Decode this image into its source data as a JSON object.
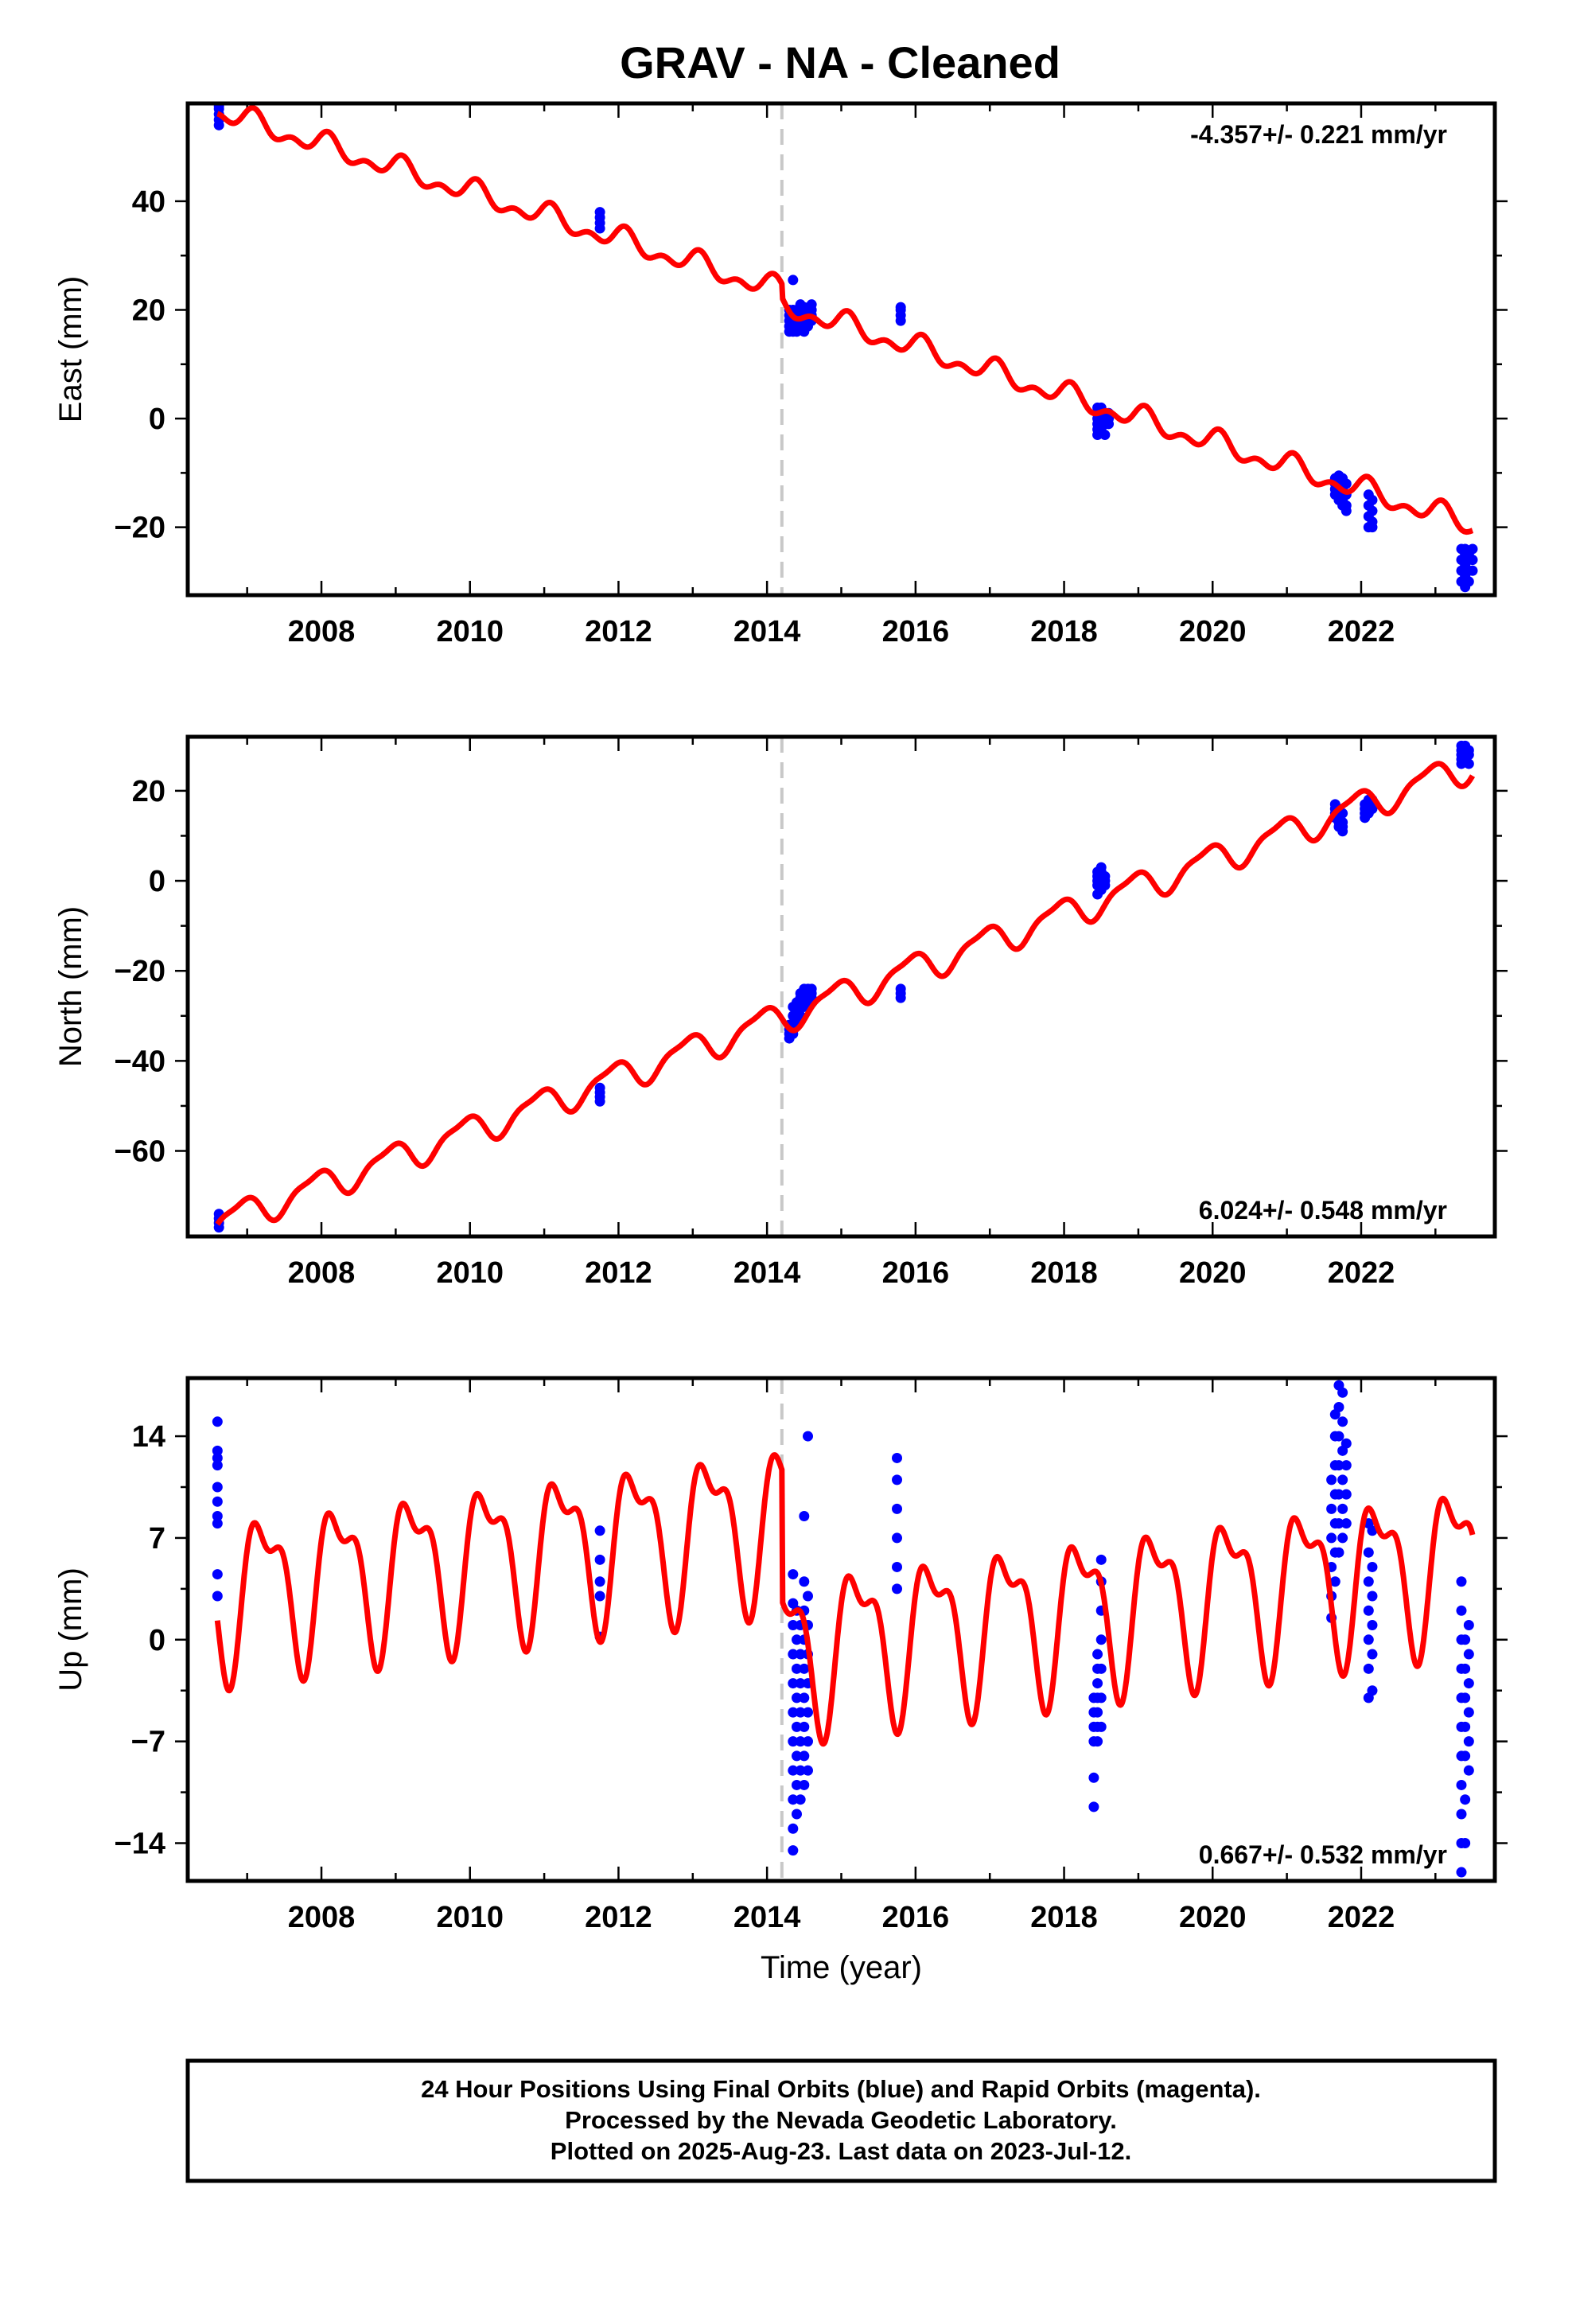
{
  "title": "GRAV  - NA - Cleaned",
  "colors": {
    "final_orbits": "#0000ff",
    "model_fit": "#ff0000",
    "break_line": "#c8c8c8",
    "frame": "#000000"
  },
  "footer": {
    "line1": "24 Hour Positions Using Final Orbits (blue) and Rapid Orbits (magenta).",
    "line2": "Processed by the Nevada Geodetic Laboratory.",
    "line3": "Plotted on 2025-Aug-23. Last data on 2023-Jul-12."
  },
  "chart_data": [
    {
      "type": "scatter",
      "panel": "east",
      "xlabel": "",
      "ylabel": "East (mm)",
      "xlim": [
        2006.2,
        2023.8
      ],
      "ylim": [
        -32.5,
        58
      ],
      "x_ticks": [
        2008,
        2010,
        2012,
        2014,
        2016,
        2018,
        2020,
        2022
      ],
      "y_ticks": [
        -20,
        0,
        20,
        40
      ],
      "rate_text": "-4.357+/- 0.221 mm/yr",
      "rate_position": "top-right",
      "break_epoch": 2014.2,
      "model": {
        "slope": -4.357,
        "ref_epoch": 2006.6,
        "intercept": 56.5,
        "offset_at_break": -2.5,
        "annual_amplitude": 1.6,
        "annual_phase": 1.1,
        "semiannual_amplitude": 1.2,
        "semiannual_phase": 0.4,
        "x_start": 2006.6,
        "x_end": 2023.5
      },
      "observations": [
        {
          "x": 2006.62,
          "y": [
            54,
            55,
            56,
            57,
            57.5
          ]
        },
        {
          "x": 2011.75,
          "y": [
            35,
            36,
            37,
            38
          ]
        },
        {
          "x": 2014.3,
          "y": [
            16,
            17,
            18,
            19,
            20
          ]
        },
        {
          "x": 2014.35,
          "y": [
            16,
            18,
            20,
            25.5
          ]
        },
        {
          "x": 2014.4,
          "y": [
            16,
            17,
            19,
            20
          ]
        },
        {
          "x": 2014.45,
          "y": [
            17,
            18,
            19,
            20,
            21
          ]
        },
        {
          "x": 2014.5,
          "y": [
            16,
            17.5,
            19,
            20.5
          ]
        },
        {
          "x": 2014.55,
          "y": [
            17,
            18,
            19,
            20
          ]
        },
        {
          "x": 2014.6,
          "y": [
            18,
            19,
            20,
            21
          ]
        },
        {
          "x": 2015.8,
          "y": [
            18,
            19,
            20,
            20.5
          ]
        },
        {
          "x": 2018.45,
          "y": [
            -3,
            -2,
            -1,
            0,
            1,
            2
          ]
        },
        {
          "x": 2018.5,
          "y": [
            -2,
            -1,
            0,
            1,
            2
          ]
        },
        {
          "x": 2018.55,
          "y": [
            -3,
            -1,
            0,
            1
          ]
        },
        {
          "x": 2018.6,
          "y": [
            -1,
            0,
            1
          ]
        },
        {
          "x": 2021.65,
          "y": [
            -11,
            -12,
            -13,
            -14
          ]
        },
        {
          "x": 2021.7,
          "y": [
            -10.5,
            -12,
            -13,
            -14,
            -15
          ]
        },
        {
          "x": 2021.75,
          "y": [
            -11,
            -13,
            -15,
            -16
          ]
        },
        {
          "x": 2021.8,
          "y": [
            -12,
            -14,
            -16,
            -17
          ]
        },
        {
          "x": 2022.1,
          "y": [
            -14,
            -16,
            -18,
            -20
          ]
        },
        {
          "x": 2022.15,
          "y": [
            -15,
            -17,
            -19,
            -20
          ]
        },
        {
          "x": 2023.35,
          "y": [
            -24,
            -26,
            -28,
            -30
          ]
        },
        {
          "x": 2023.4,
          "y": [
            -24,
            -25,
            -27,
            -29,
            -31
          ]
        },
        {
          "x": 2023.45,
          "y": [
            -25,
            -26,
            -28,
            -30
          ]
        },
        {
          "x": 2023.5,
          "y": [
            -24,
            -26,
            -28
          ]
        }
      ]
    },
    {
      "type": "scatter",
      "panel": "north",
      "xlabel": "",
      "ylabel": "North (mm)",
      "xlim": [
        2006.2,
        2023.8
      ],
      "ylim": [
        -79,
        32
      ],
      "x_ticks": [
        2008,
        2010,
        2012,
        2014,
        2016,
        2018,
        2020,
        2022
      ],
      "y_ticks": [
        -60,
        -40,
        -20,
        0,
        20
      ],
      "rate_text": "6.024+/- 0.548 mm/yr",
      "rate_position": "bottom-right",
      "break_epoch": 2014.2,
      "model": {
        "slope": 6.024,
        "ref_epoch": 2006.6,
        "intercept": -76,
        "offset_at_break": 0,
        "annual_amplitude": 3.2,
        "annual_phase": 2.1,
        "semiannual_amplitude": 1.0,
        "semiannual_phase": 0.3,
        "x_start": 2006.6,
        "x_end": 2023.5
      },
      "observations": [
        {
          "x": 2006.62,
          "y": [
            -74,
            -75,
            -76,
            -77
          ]
        },
        {
          "x": 2011.75,
          "y": [
            -46,
            -47,
            -48,
            -49
          ]
        },
        {
          "x": 2014.3,
          "y": [
            -35,
            -34,
            -33,
            -32
          ]
        },
        {
          "x": 2014.35,
          "y": [
            -34,
            -32,
            -30,
            -28
          ]
        },
        {
          "x": 2014.4,
          "y": [
            -32,
            -30,
            -28,
            -27
          ]
        },
        {
          "x": 2014.45,
          "y": [
            -30,
            -28,
            -26,
            -25
          ]
        },
        {
          "x": 2014.5,
          "y": [
            -28,
            -26,
            -25,
            -24
          ]
        },
        {
          "x": 2014.55,
          "y": [
            -27,
            -25,
            -24
          ]
        },
        {
          "x": 2014.6,
          "y": [
            -26,
            -25,
            -24
          ]
        },
        {
          "x": 2015.8,
          "y": [
            -26,
            -25,
            -24
          ]
        },
        {
          "x": 2018.45,
          "y": [
            -3,
            -1,
            0,
            1,
            2
          ]
        },
        {
          "x": 2018.5,
          "y": [
            -2,
            0,
            1,
            2,
            3
          ]
        },
        {
          "x": 2018.55,
          "y": [
            -1,
            0,
            1
          ]
        },
        {
          "x": 2021.65,
          "y": [
            17,
            16,
            15,
            14
          ]
        },
        {
          "x": 2021.7,
          "y": [
            16,
            15,
            14,
            13,
            12
          ]
        },
        {
          "x": 2021.75,
          "y": [
            15,
            13,
            12,
            11
          ]
        },
        {
          "x": 2022.05,
          "y": [
            14,
            15,
            16,
            17
          ]
        },
        {
          "x": 2022.1,
          "y": [
            15,
            16,
            17,
            18
          ]
        },
        {
          "x": 2022.15,
          "y": [
            16,
            17,
            18
          ]
        },
        {
          "x": 2023.35,
          "y": [
            26,
            27,
            28,
            29,
            30
          ]
        },
        {
          "x": 2023.4,
          "y": [
            27,
            28,
            29,
            30
          ]
        },
        {
          "x": 2023.45,
          "y": [
            26,
            28,
            29
          ]
        }
      ]
    },
    {
      "type": "scatter",
      "panel": "up",
      "xlabel": "Time (year)",
      "ylabel": "Up (mm)",
      "xlim": [
        2006.2,
        2023.8
      ],
      "ylim": [
        -16.6,
        18
      ],
      "x_ticks": [
        2008,
        2010,
        2012,
        2014,
        2016,
        2018,
        2020,
        2022
      ],
      "y_ticks": [
        -14,
        -7,
        0,
        7,
        14
      ],
      "rate_text": "0.667+/- 0.532 mm/yr",
      "rate_position": "bottom-right",
      "break_epoch": 2014.2,
      "model": {
        "slope": 0.667,
        "ref_epoch": 2006.6,
        "intercept": 3.3,
        "offset_at_break": -9.0,
        "annual_amplitude": 4.8,
        "annual_phase": 0.1,
        "semiannual_amplitude": 2.2,
        "semiannual_phase": 1.3,
        "x_start": 2006.6,
        "x_end": 2023.5
      },
      "observations": [
        {
          "x": 2006.6,
          "y": [
            3,
            4.5,
            8,
            8.5,
            9.5,
            10.5,
            12,
            12.5,
            13,
            15
          ]
        },
        {
          "x": 2011.75,
          "y": [
            0.2,
            3,
            4,
            5.5,
            7.5
          ]
        },
        {
          "x": 2014.35,
          "y": [
            -14.5,
            -13,
            -11,
            -9,
            -7,
            -5,
            -3,
            -1,
            1,
            2.5,
            4.5
          ]
        },
        {
          "x": 2014.4,
          "y": [
            -12,
            -10,
            -8,
            -6,
            -4,
            -2,
            0,
            2
          ]
        },
        {
          "x": 2014.45,
          "y": [
            -11,
            -9,
            -7,
            -5,
            -3,
            -1,
            1
          ]
        },
        {
          "x": 2014.5,
          "y": [
            -10,
            -8,
            -6,
            -4,
            -2,
            0,
            2,
            4,
            8.5
          ]
        },
        {
          "x": 2014.55,
          "y": [
            -9,
            -7,
            -5,
            -3,
            -1,
            1,
            3,
            14
          ]
        },
        {
          "x": 2015.75,
          "y": [
            3.5,
            5,
            7,
            9,
            11,
            12.5
          ]
        },
        {
          "x": 2018.4,
          "y": [
            -11.5,
            -9.5,
            -7,
            -6,
            -5,
            -4
          ]
        },
        {
          "x": 2018.45,
          "y": [
            -7,
            -6,
            -5,
            -4,
            -3,
            -2,
            -1
          ]
        },
        {
          "x": 2018.5,
          "y": [
            -6,
            -4,
            -2,
            0,
            2,
            4,
            5.5
          ]
        },
        {
          "x": 2021.6,
          "y": [
            1.5,
            3,
            5,
            7,
            9,
            11
          ]
        },
        {
          "x": 2021.65,
          "y": [
            4,
            6,
            8,
            10,
            12,
            14,
            15.5
          ]
        },
        {
          "x": 2021.7,
          "y": [
            6,
            8,
            10,
            12,
            14,
            16,
            17.5
          ]
        },
        {
          "x": 2021.75,
          "y": [
            7,
            9,
            11,
            13,
            15,
            17
          ]
        },
        {
          "x": 2021.8,
          "y": [
            8,
            10,
            12,
            13.5
          ]
        },
        {
          "x": 2022.1,
          "y": [
            -4,
            -2,
            0,
            2,
            4,
            6,
            8
          ]
        },
        {
          "x": 2022.15,
          "y": [
            -3.5,
            -1,
            1,
            3,
            5,
            7.5
          ]
        },
        {
          "x": 2023.35,
          "y": [
            -16,
            -14,
            -12,
            -10,
            -8,
            -6,
            -4,
            -2,
            0,
            2,
            4
          ]
        },
        {
          "x": 2023.4,
          "y": [
            -14,
            -11,
            -8,
            -6,
            -4,
            -2,
            0
          ]
        },
        {
          "x": 2023.45,
          "y": [
            -9,
            -7,
            -5,
            -3,
            -1,
            1
          ]
        }
      ]
    }
  ]
}
